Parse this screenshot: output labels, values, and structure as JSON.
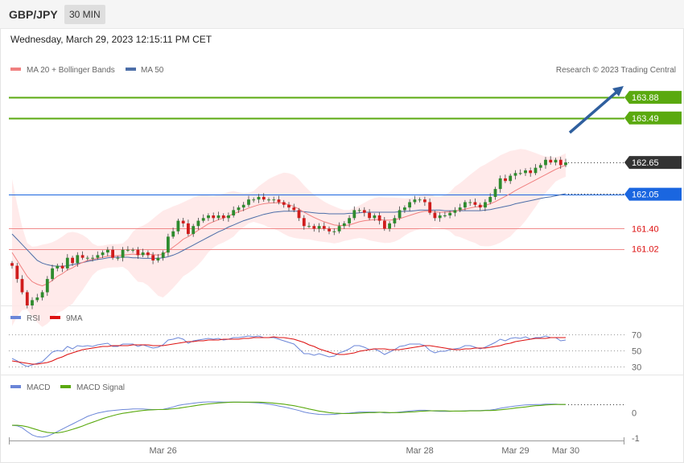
{
  "header": {
    "symbol": "GBP/JPY",
    "timeframe": "30 MIN",
    "datetime": "Wednesday, March 29, 2023 12:15:11 PM CET"
  },
  "legend": {
    "ma20_label": "MA 20 + Bollinger Bands",
    "ma50_label": "MA 50",
    "credit": "Research © 2023 Trading Central",
    "rsi_label": "RSI",
    "rsi_ma_label": "9MA",
    "macd_label": "MACD",
    "macd_signal_label": "MACD Signal"
  },
  "colors": {
    "ma20": "#f08080",
    "ma50": "#4c6ea8",
    "band_fill": "#ffe6e6",
    "candle_up": "#2e8b2e",
    "candle_down": "#d01c1c",
    "target_green": "#5aa90f",
    "pivot_blue": "#1a66e0",
    "support_red": "#f08a8a",
    "arrow": "#2f5f9e",
    "rsi": "#6b86d8",
    "rsi_ma": "#dd1111",
    "macd": "#6b86d8",
    "macd_signal": "#5aa90f"
  },
  "chart_data": [
    {
      "type": "candlestick",
      "symbol": "GBP/JPY",
      "timeframe": "30 MIN",
      "ylim": [
        159.95,
        164.2
      ],
      "x_ticks": [
        "Mar 26",
        "Mar 28",
        "Mar 29",
        "Mar 30"
      ],
      "levels": [
        {
          "value": "163.88",
          "kind": "resistance target",
          "color": "green"
        },
        {
          "value": "163.49",
          "kind": "resistance target",
          "color": "green"
        },
        {
          "value": "162.65",
          "kind": "last price",
          "color": "dark"
        },
        {
          "value": "162.05",
          "kind": "pivot",
          "color": "blue"
        },
        {
          "value": "161.40",
          "kind": "support",
          "color": "red"
        },
        {
          "value": "161.02",
          "kind": "support",
          "color": "red"
        }
      ],
      "series": [
        {
          "name": "MA 20 + Bollinger Bands",
          "kind": "ma20 with bands"
        },
        {
          "name": "MA 50",
          "kind": "ma50"
        }
      ],
      "closes": [
        160.7,
        160.45,
        160.2,
        159.95,
        160.05,
        160.1,
        160.2,
        160.45,
        160.65,
        160.7,
        160.65,
        160.85,
        160.75,
        160.9,
        160.85,
        160.85,
        160.85,
        160.9,
        160.95,
        161.0,
        160.85,
        160.85,
        161.0,
        161.0,
        161.0,
        160.9,
        160.95,
        160.9,
        160.8,
        160.85,
        160.95,
        161.25,
        161.35,
        161.55,
        161.5,
        161.3,
        161.45,
        161.55,
        161.6,
        161.65,
        161.6,
        161.65,
        161.6,
        161.65,
        161.75,
        161.8,
        161.85,
        161.95,
        161.95,
        162.0,
        161.95,
        161.95,
        161.95,
        161.9,
        161.85,
        161.8,
        161.75,
        161.6,
        161.45,
        161.45,
        161.4,
        161.45,
        161.4,
        161.35,
        161.35,
        161.45,
        161.5,
        161.6,
        161.75,
        161.75,
        161.7,
        161.6,
        161.65,
        161.55,
        161.4,
        161.5,
        161.6,
        161.75,
        161.8,
        161.9,
        161.95,
        161.95,
        161.9,
        161.7,
        161.6,
        161.65,
        161.65,
        161.7,
        161.75,
        161.8,
        161.9,
        161.9,
        161.85,
        161.8,
        161.9,
        162.0,
        162.15,
        162.35,
        162.3,
        162.4,
        162.45,
        162.45,
        162.5,
        162.45,
        162.55,
        162.6,
        162.7,
        162.65,
        162.7,
        162.6,
        162.65
      ],
      "ma20": [
        160.95,
        160.8,
        160.65,
        160.5,
        160.4,
        160.35,
        160.32,
        160.36,
        160.42,
        160.5,
        160.55,
        160.62,
        160.66,
        160.72,
        160.76,
        160.8,
        160.82,
        160.84,
        160.86,
        160.88,
        160.89,
        160.89,
        160.9,
        160.91,
        160.92,
        160.91,
        160.92,
        160.92,
        160.91,
        160.9,
        160.92,
        160.98,
        161.05,
        161.12,
        161.2,
        161.25,
        161.31,
        161.37,
        161.43,
        161.49,
        161.53,
        161.57,
        161.6,
        161.64,
        161.68,
        161.72,
        161.75,
        161.79,
        161.82,
        161.85,
        161.87,
        161.88,
        161.89,
        161.89,
        161.88,
        161.85,
        161.82,
        161.77,
        161.71,
        161.66,
        161.61,
        161.57,
        161.53,
        161.5,
        161.47,
        161.46,
        161.46,
        161.47,
        161.5,
        161.53,
        161.55,
        161.56,
        161.57,
        161.57,
        161.56,
        161.56,
        161.57,
        161.59,
        161.62,
        161.65,
        161.68,
        161.71,
        161.73,
        161.73,
        161.72,
        161.71,
        161.71,
        161.72,
        161.73,
        161.75,
        161.77,
        161.79,
        161.81,
        161.82,
        161.84,
        161.87,
        161.91,
        161.96,
        162.01,
        162.06,
        162.12,
        162.17,
        162.22,
        162.27,
        162.32,
        162.37,
        162.42,
        162.47,
        162.52,
        162.56,
        162.6
      ],
      "ma50": [
        161.3,
        161.2,
        161.1,
        161.0,
        160.9,
        160.8,
        160.75,
        160.72,
        160.7,
        160.69,
        160.69,
        160.7,
        160.72,
        160.74,
        160.76,
        160.78,
        160.8,
        160.82,
        160.83,
        160.85,
        160.86,
        160.86,
        160.86,
        160.86,
        160.85,
        160.85,
        160.84,
        160.84,
        160.84,
        160.84,
        160.85,
        160.87,
        160.9,
        160.94,
        160.99,
        161.04,
        161.09,
        161.14,
        161.19,
        161.24,
        161.29,
        161.34,
        161.38,
        161.43,
        161.47,
        161.51,
        161.55,
        161.58,
        161.61,
        161.64,
        161.67,
        161.69,
        161.71,
        161.72,
        161.73,
        161.73,
        161.73,
        161.73,
        161.72,
        161.71,
        161.7,
        161.69,
        161.69,
        161.68,
        161.68,
        161.68,
        161.68,
        161.69,
        161.69,
        161.7,
        161.71,
        161.71,
        161.71,
        161.71,
        161.71,
        161.71,
        161.71,
        161.72,
        161.73,
        161.73,
        161.74,
        161.75,
        161.75,
        161.75,
        161.75,
        161.75,
        161.74,
        161.74,
        161.74,
        161.74,
        161.74,
        161.74,
        161.74,
        161.74,
        161.75,
        161.76,
        161.78,
        161.8,
        161.82,
        161.84,
        161.87,
        161.89,
        161.91,
        161.93,
        161.95,
        161.97,
        161.99,
        162.0,
        162.02,
        162.04,
        162.06
      ]
    },
    {
      "type": "line",
      "name": "RSI",
      "ylim": [
        22,
        82
      ],
      "y_ticks": [
        "70",
        "50",
        "30"
      ],
      "series": [
        {
          "name": "RSI",
          "values": [
            40,
            37,
            33,
            30,
            32,
            34,
            36,
            42,
            48,
            50,
            49,
            55,
            52,
            56,
            55,
            56,
            55,
            57,
            58,
            59,
            55,
            55,
            58,
            58,
            58,
            55,
            57,
            55,
            53,
            54,
            57,
            63,
            64,
            66,
            64,
            59,
            62,
            63,
            64,
            65,
            64,
            65,
            63,
            64,
            66,
            66,
            67,
            68,
            67,
            68,
            66,
            66,
            66,
            64,
            62,
            60,
            58,
            52,
            46,
            46,
            44,
            46,
            44,
            42,
            43,
            47,
            49,
            52,
            56,
            56,
            54,
            51,
            52,
            49,
            45,
            48,
            51,
            55,
            56,
            58,
            58,
            58,
            56,
            50,
            47,
            49,
            49,
            51,
            52,
            53,
            56,
            56,
            54,
            52,
            54,
            57,
            60,
            64,
            62,
            65,
            66,
            65,
            67,
            64,
            66,
            66,
            68,
            66,
            66,
            62,
            63
          ]
        },
        {
          "name": "9MA",
          "values": [
            37,
            36,
            35,
            34,
            33,
            33,
            34,
            35,
            37,
            40,
            42,
            45,
            47,
            49,
            51,
            52,
            53,
            54,
            55,
            55,
            56,
            56,
            56,
            56,
            57,
            57,
            57,
            57,
            56,
            56,
            56,
            57,
            58,
            59,
            60,
            61,
            61,
            62,
            62,
            63,
            63,
            63,
            64,
            64,
            64,
            64,
            65,
            65,
            66,
            66,
            66,
            66,
            67,
            66,
            66,
            65,
            64,
            62,
            60,
            57,
            55,
            52,
            50,
            48,
            46,
            45,
            45,
            46,
            47,
            49,
            50,
            51,
            52,
            52,
            52,
            51,
            51,
            51,
            52,
            53,
            54,
            55,
            56,
            56,
            55,
            54,
            53,
            52,
            51,
            51,
            52,
            52,
            53,
            53,
            53,
            54,
            55,
            56,
            58,
            59,
            61,
            62,
            63,
            64,
            65,
            65,
            65,
            66,
            66,
            66,
            66
          ]
        }
      ]
    },
    {
      "type": "line",
      "name": "MACD",
      "ylim": [
        -1.1,
        0.8
      ],
      "y_ticks": [
        "0",
        "-1"
      ],
      "x_ticks": [
        "Mar 26",
        "Mar 28",
        "Mar 29",
        "Mar 30"
      ],
      "series": [
        {
          "name": "MACD",
          "values": [
            -0.5,
            -0.52,
            -0.6,
            -0.75,
            -0.88,
            -0.95,
            -0.97,
            -0.93,
            -0.85,
            -0.75,
            -0.65,
            -0.55,
            -0.45,
            -0.35,
            -0.25,
            -0.15,
            -0.08,
            -0.02,
            0.02,
            0.06,
            0.08,
            0.1,
            0.12,
            0.13,
            0.14,
            0.14,
            0.14,
            0.13,
            0.12,
            0.12,
            0.13,
            0.17,
            0.22,
            0.28,
            0.32,
            0.34,
            0.37,
            0.39,
            0.41,
            0.42,
            0.42,
            0.42,
            0.41,
            0.41,
            0.41,
            0.41,
            0.4,
            0.4,
            0.39,
            0.38,
            0.36,
            0.33,
            0.3,
            0.26,
            0.22,
            0.18,
            0.13,
            0.08,
            0.02,
            -0.02,
            -0.05,
            -0.07,
            -0.08,
            -0.08,
            -0.07,
            -0.05,
            -0.03,
            -0.02,
            0.0,
            0.02,
            0.02,
            0.02,
            0.02,
            0.01,
            -0.01,
            -0.01,
            0.0,
            0.02,
            0.04,
            0.06,
            0.08,
            0.09,
            0.09,
            0.08,
            0.06,
            0.05,
            0.05,
            0.05,
            0.06,
            0.06,
            0.07,
            0.08,
            0.08,
            0.08,
            0.09,
            0.1,
            0.13,
            0.17,
            0.2,
            0.23,
            0.26,
            0.28,
            0.3,
            0.31,
            0.32,
            0.32,
            0.33,
            0.33,
            0.33,
            0.32,
            0.32
          ]
        },
        {
          "name": "MACD Signal",
          "values": [
            -0.5,
            -0.5,
            -0.52,
            -0.56,
            -0.62,
            -0.68,
            -0.74,
            -0.78,
            -0.8,
            -0.8,
            -0.77,
            -0.72,
            -0.66,
            -0.6,
            -0.53,
            -0.45,
            -0.38,
            -0.31,
            -0.24,
            -0.18,
            -0.12,
            -0.07,
            -0.03,
            0.0,
            0.03,
            0.06,
            0.08,
            0.1,
            0.11,
            0.12,
            0.12,
            0.13,
            0.15,
            0.17,
            0.2,
            0.23,
            0.26,
            0.29,
            0.32,
            0.34,
            0.36,
            0.38,
            0.39,
            0.4,
            0.41,
            0.41,
            0.41,
            0.41,
            0.41,
            0.41,
            0.4,
            0.39,
            0.37,
            0.35,
            0.33,
            0.3,
            0.27,
            0.23,
            0.19,
            0.14,
            0.1,
            0.06,
            0.03,
            0.0,
            -0.02,
            -0.03,
            -0.04,
            -0.04,
            -0.03,
            -0.02,
            -0.01,
            0.0,
            0.0,
            0.01,
            0.01,
            0.0,
            0.0,
            0.0,
            0.01,
            0.02,
            0.03,
            0.05,
            0.06,
            0.07,
            0.07,
            0.07,
            0.07,
            0.06,
            0.06,
            0.06,
            0.06,
            0.07,
            0.07,
            0.07,
            0.08,
            0.08,
            0.09,
            0.11,
            0.13,
            0.15,
            0.18,
            0.2,
            0.22,
            0.25,
            0.27,
            0.28,
            0.3,
            0.31,
            0.32,
            0.32,
            0.32
          ]
        }
      ]
    }
  ]
}
